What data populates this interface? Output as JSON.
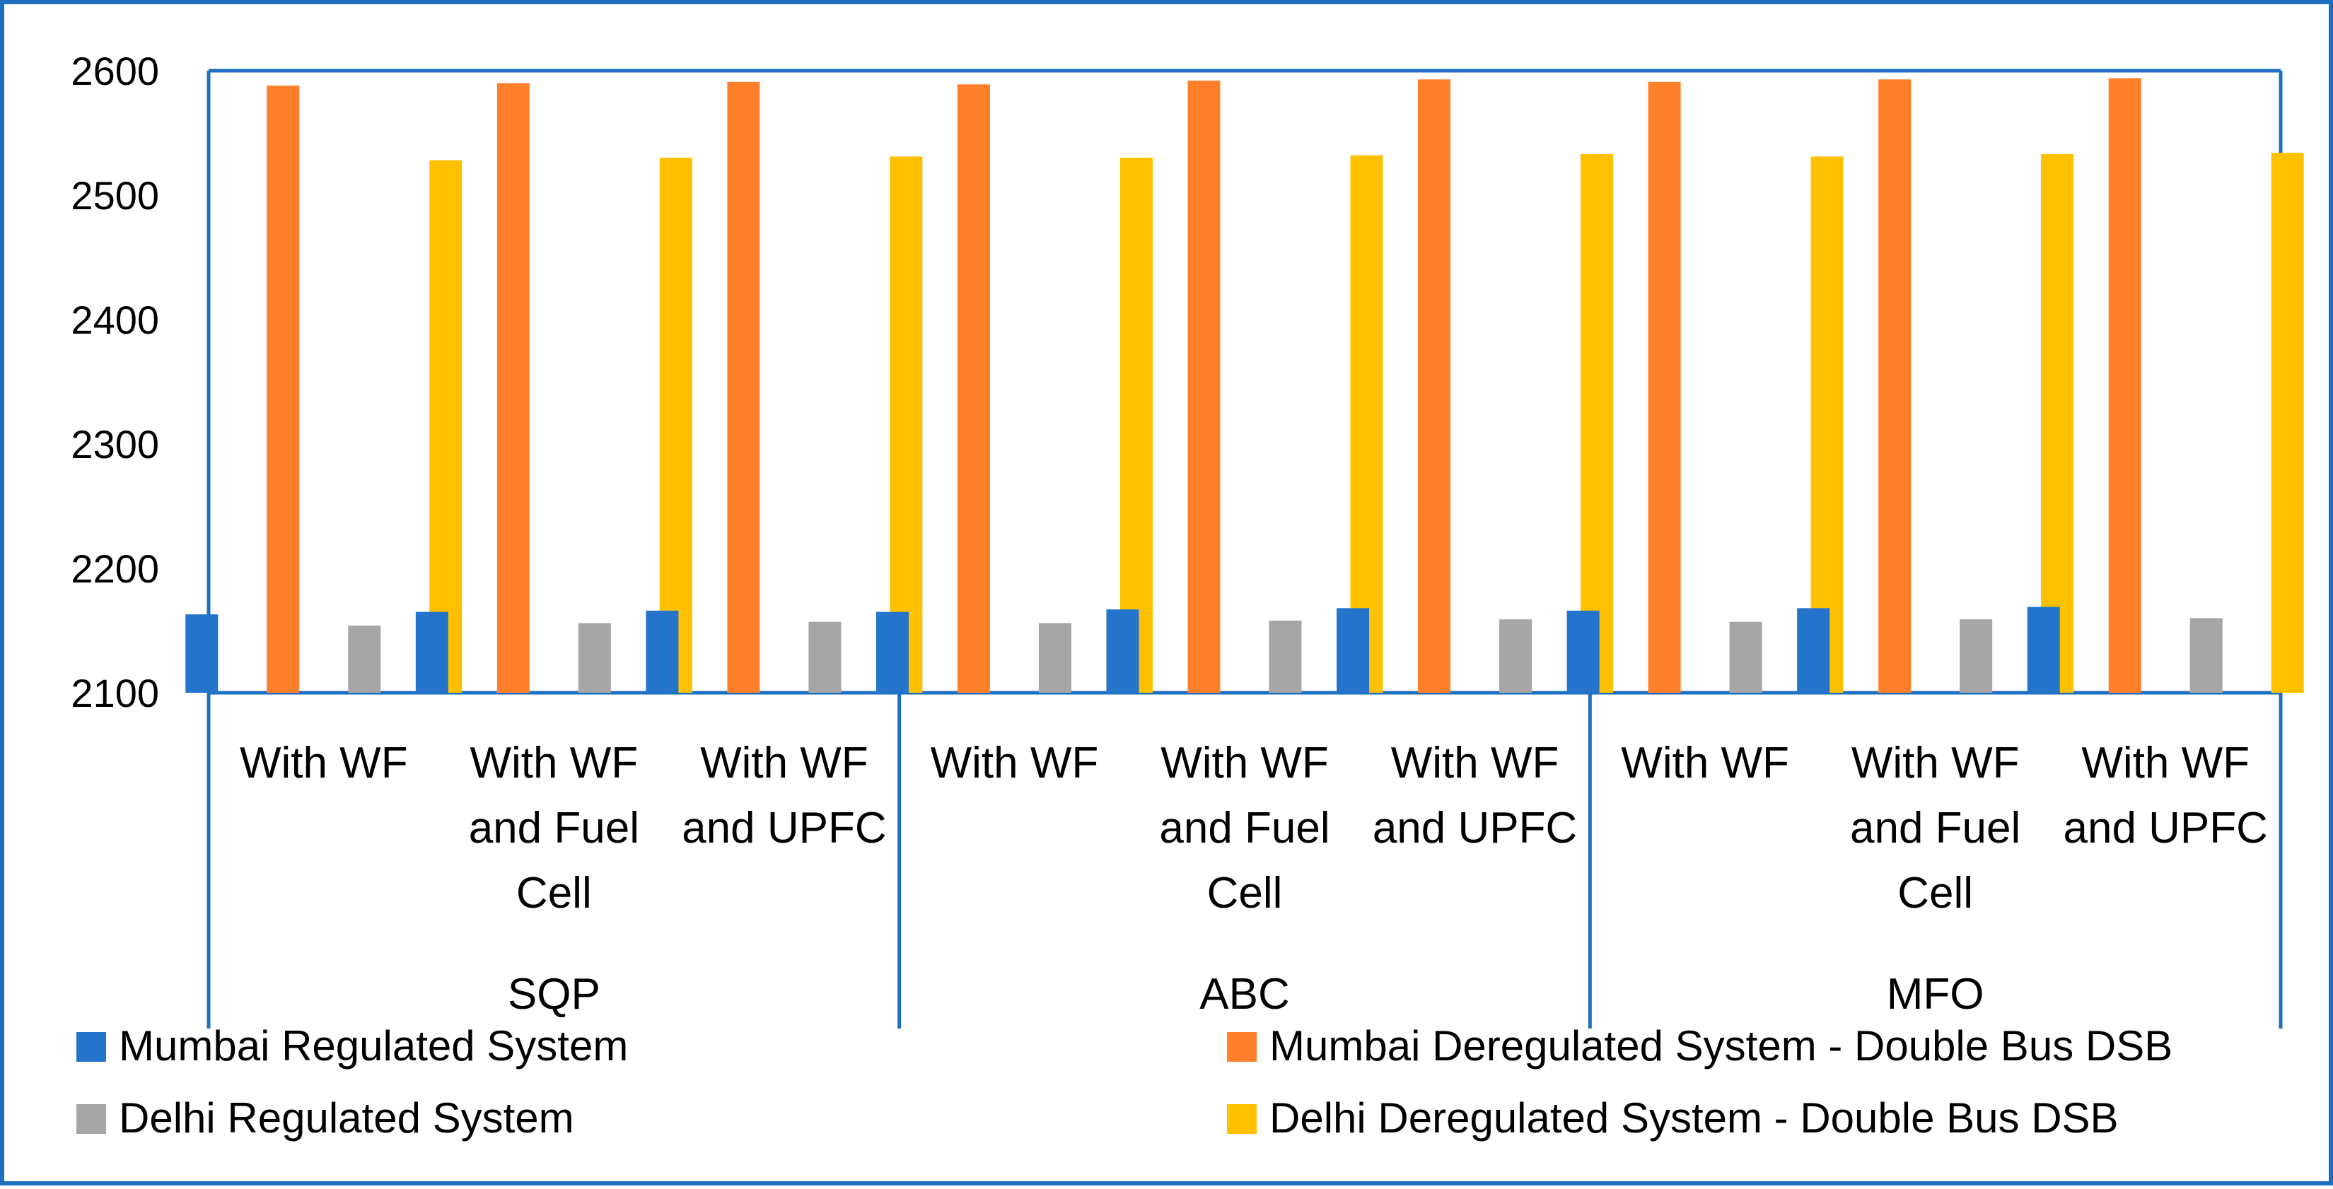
{
  "chart_data": {
    "type": "bar",
    "title": "",
    "xlabel": "",
    "ylabel": "",
    "ylim": [
      2100,
      2600
    ],
    "yticks": [
      2100,
      2200,
      2300,
      2400,
      2500,
      2600
    ],
    "grid": false,
    "legend_position": "bottom",
    "groups": [
      {
        "label": "SQP",
        "categories": [
          "With WF",
          "With WF and Fuel Cell",
          "With WF and UPFC"
        ]
      },
      {
        "label": "ABC",
        "categories": [
          "With WF",
          "With WF and Fuel Cell",
          "With WF and UPFC"
        ]
      },
      {
        "label": "MFO",
        "categories": [
          "With WF",
          "With WF and Fuel Cell",
          "With WF and UPFC"
        ]
      }
    ],
    "category_lines": {
      "With WF": [
        "With WF"
      ],
      "With WF and Fuel Cell": [
        "With WF",
        "and Fuel",
        "Cell"
      ],
      "With WF and UPFC": [
        "With WF",
        "and UPFC"
      ]
    },
    "series": [
      {
        "name": "Mumbai Regulated System",
        "color": "#2474cc",
        "values": [
          2163,
          2165,
          2166,
          2165,
          2167,
          2168,
          2166,
          2168,
          2169
        ]
      },
      {
        "name": "Mumbai Deregulated System - Double Bus DSB",
        "color": "#ff7f2a",
        "values": [
          2588,
          2590,
          2591,
          2589,
          2592,
          2593,
          2591,
          2593,
          2594
        ]
      },
      {
        "name": "Delhi Regulated System",
        "color": "#a6a6a6",
        "values": [
          2154,
          2156,
          2157,
          2156,
          2158,
          2159,
          2157,
          2159,
          2160
        ]
      },
      {
        "name": "Delhi Deregulated System - Double Bus DSB",
        "color": "#ffc000",
        "values": [
          2528,
          2530,
          2531,
          2530,
          2532,
          2533,
          2531,
          2533,
          2534
        ]
      }
    ],
    "frame_color": "#1f6fc0"
  }
}
